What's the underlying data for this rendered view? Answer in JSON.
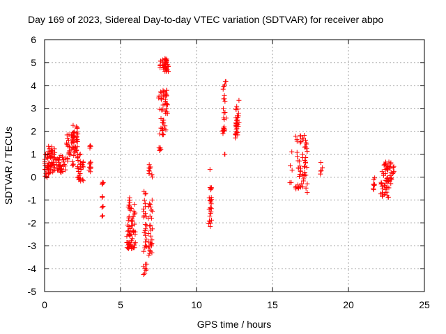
{
  "chart_data": {
    "type": "scatter",
    "title": "Day 169 of 2023, Sidereal Day-to-day VTEC variation (SDTVAR) for receiver abpo",
    "xlabel": "GPS time / hours",
    "ylabel": "SDTVAR / TECUs",
    "xlim": [
      0,
      25
    ],
    "ylim": [
      -5,
      6
    ],
    "xticks": [
      "0",
      "5",
      "10",
      "15",
      "20",
      "25"
    ],
    "yticks": [
      "-5",
      "-4",
      "-3",
      "-2",
      "-1",
      "0",
      "1",
      "2",
      "3",
      "4",
      "5",
      "6"
    ],
    "grid": true,
    "marker": "+",
    "color": "#ff0000",
    "clusters": [
      {
        "x": [
          0.0,
          0.3
        ],
        "y": [
          -0.1,
          1.0
        ],
        "n": 30
      },
      {
        "x": [
          0.2,
          0.9
        ],
        "y": [
          0.2,
          1.35
        ],
        "n": 45
      },
      {
        "x": [
          0.9,
          1.4
        ],
        "y": [
          0.2,
          0.95
        ],
        "n": 30
      },
      {
        "x": [
          1.4,
          1.9
        ],
        "y": [
          0.4,
          1.85
        ],
        "n": 30
      },
      {
        "x": [
          1.8,
          2.2
        ],
        "y": [
          0.8,
          2.3
        ],
        "n": 40
      },
      {
        "x": [
          2.1,
          2.6
        ],
        "y": [
          -0.3,
          1.1
        ],
        "n": 30
      },
      {
        "x": [
          2.9,
          3.05
        ],
        "y": [
          0.2,
          0.75
        ],
        "n": 10
      },
      {
        "x": [
          2.95,
          3.05
        ],
        "y": [
          1.25,
          1.4
        ],
        "n": 4
      },
      {
        "x": [
          3.75,
          3.9
        ],
        "y": [
          -0.35,
          -0.2
        ],
        "n": 4
      },
      {
        "x": [
          3.75,
          3.9
        ],
        "y": [
          -1.0,
          -0.85
        ],
        "n": 3
      },
      {
        "x": [
          3.75,
          3.9
        ],
        "y": [
          -1.35,
          -1.25
        ],
        "n": 3
      },
      {
        "x": [
          3.75,
          3.85
        ],
        "y": [
          -1.75,
          -1.65
        ],
        "n": 2
      },
      {
        "x": [
          5.4,
          6.0
        ],
        "y": [
          -3.15,
          -1.7
        ],
        "n": 55
      },
      {
        "x": [
          5.5,
          6.0
        ],
        "y": [
          -1.7,
          -0.85
        ],
        "n": 15
      },
      {
        "x": [
          6.5,
          6.75
        ],
        "y": [
          -3.3,
          -0.5
        ],
        "n": 25
      },
      {
        "x": [
          6.5,
          6.75
        ],
        "y": [
          -4.3,
          -3.7
        ],
        "n": 8
      },
      {
        "x": [
          6.8,
          7.1
        ],
        "y": [
          -3.5,
          -1.0
        ],
        "n": 30
      },
      {
        "x": [
          6.85,
          7.1
        ],
        "y": [
          0.0,
          0.55
        ],
        "n": 10
      },
      {
        "x": [
          7.5,
          7.7
        ],
        "y": [
          1.15,
          1.3
        ],
        "n": 6
      },
      {
        "x": [
          7.5,
          8.1
        ],
        "y": [
          1.7,
          3.8
        ],
        "n": 50
      },
      {
        "x": [
          7.6,
          8.15
        ],
        "y": [
          4.6,
          5.25
        ],
        "n": 40
      },
      {
        "x": [
          10.8,
          11.0
        ],
        "y": [
          -2.2,
          -0.8
        ],
        "n": 20
      },
      {
        "x": [
          10.85,
          11.0
        ],
        "y": [
          -0.6,
          0.35
        ],
        "n": 6
      },
      {
        "x": [
          11.7,
          11.9
        ],
        "y": [
          1.9,
          2.4
        ],
        "n": 10
      },
      {
        "x": [
          11.75,
          11.95
        ],
        "y": [
          2.5,
          4.3
        ],
        "n": 15
      },
      {
        "x": [
          11.8,
          11.9
        ],
        "y": [
          0.9,
          1.05
        ],
        "n": 2
      },
      {
        "x": [
          12.55,
          12.8
        ],
        "y": [
          1.6,
          3.35
        ],
        "n": 35
      },
      {
        "x": [
          16.1,
          16.3
        ],
        "y": [
          -0.3,
          1.45
        ],
        "n": 5
      },
      {
        "x": [
          16.5,
          17.3
        ],
        "y": [
          -0.7,
          1.9
        ],
        "n": 60
      },
      {
        "x": [
          18.1,
          18.3
        ],
        "y": [
          -0.35,
          0.75
        ],
        "n": 5
      },
      {
        "x": [
          21.6,
          21.75
        ],
        "y": [
          -0.6,
          0.05
        ],
        "n": 8
      },
      {
        "x": [
          22.1,
          22.8
        ],
        "y": [
          -0.9,
          0.7
        ],
        "n": 55
      },
      {
        "x": [
          22.8,
          23.0
        ],
        "y": [
          -0.2,
          0.5
        ],
        "n": 8
      }
    ]
  }
}
